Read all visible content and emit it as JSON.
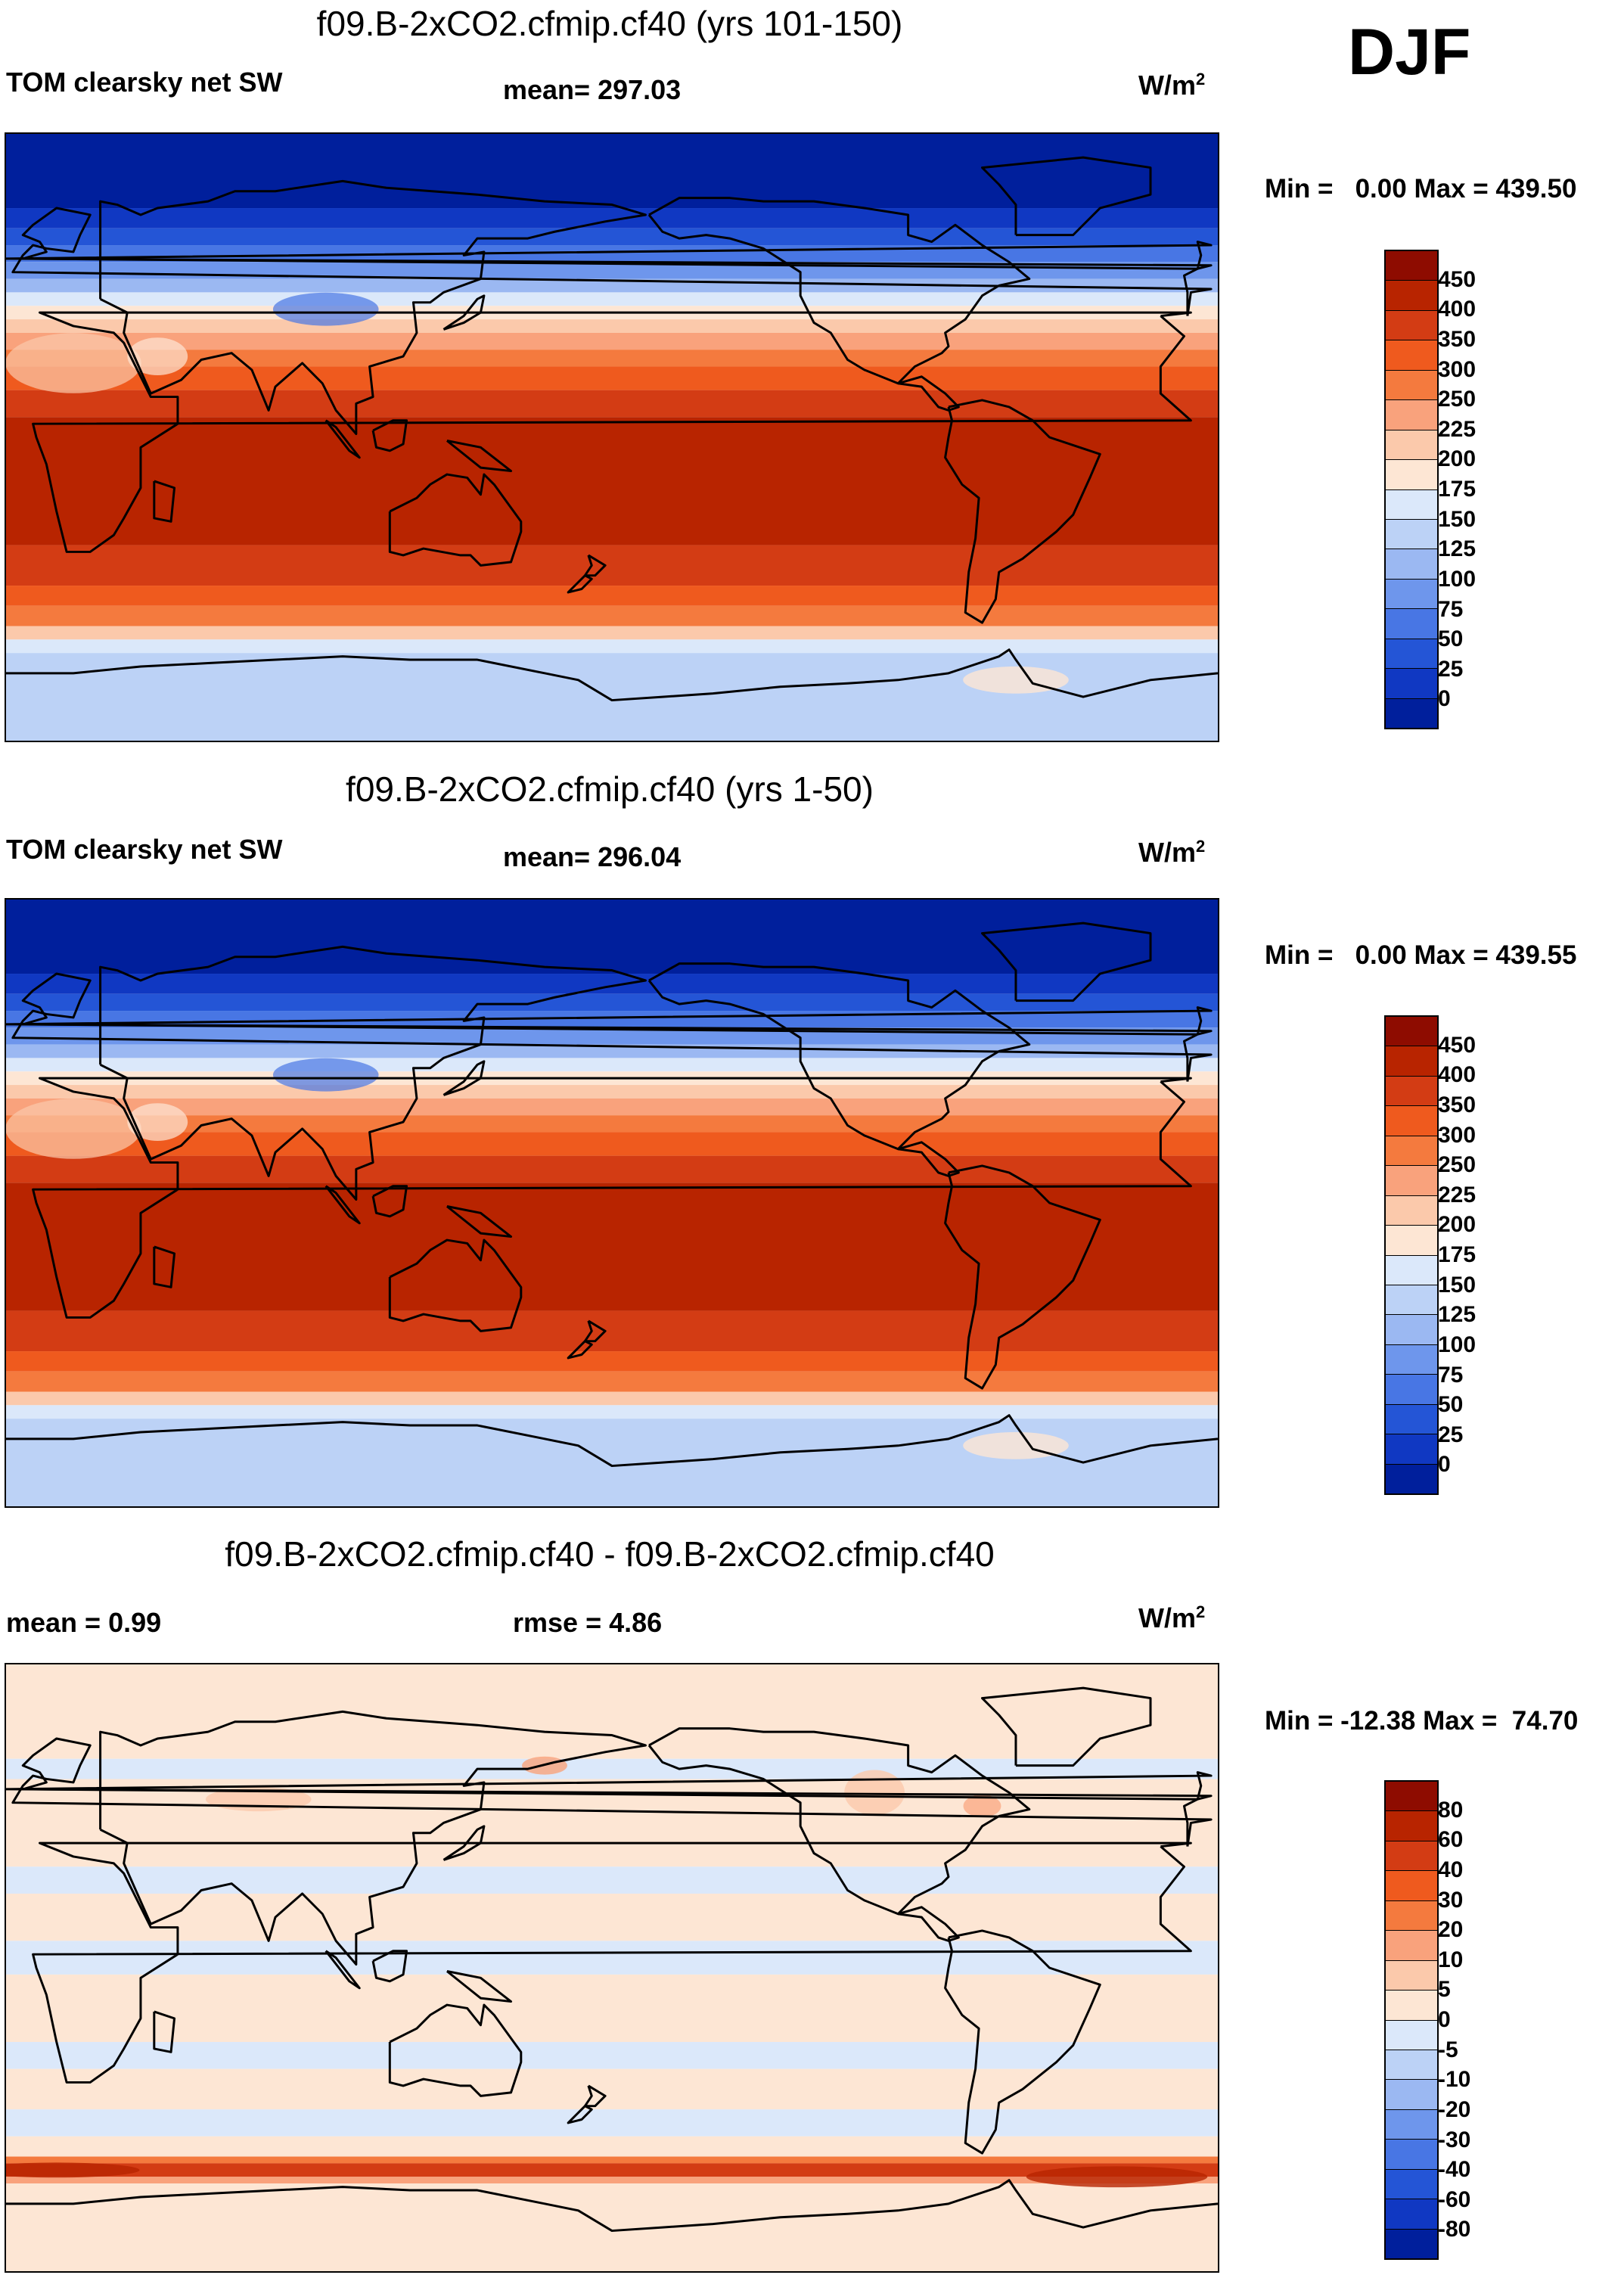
{
  "season": "DJF",
  "units_label": "W/m",
  "units_exp": "2",
  "panels": [
    {
      "title": "f09.B-2xCO2.cfmip.cf40 (yrs 101-150)",
      "variable": "TOM clearsky net SW",
      "mean_text": "mean= 297.03",
      "minmax_text": "Min =   0.00 Max = 439.50",
      "style": "absolute",
      "colorbar": {
        "colors": [
          "#8e0c00",
          "#b82400",
          "#d33c14",
          "#ef5a1e",
          "#f47a3e",
          "#f9a27c",
          "#fbc9ab",
          "#fde6d4",
          "#dbe8fa",
          "#bcd2f6",
          "#9bb8f2",
          "#6e96ec",
          "#4876e4",
          "#2455d6",
          "#1038c2",
          "#001f9c"
        ],
        "labels": [
          "450",
          "400",
          "350",
          "300",
          "250",
          "225",
          "200",
          "175",
          "150",
          "125",
          "100",
          "75",
          "50",
          "25",
          "0"
        ]
      }
    },
    {
      "title": "f09.B-2xCO2.cfmip.cf40 (yrs 1-50)",
      "variable": "TOM clearsky net SW",
      "mean_text": "mean= 296.04",
      "minmax_text": "Min =   0.00 Max = 439.55",
      "style": "absolute",
      "colorbar": {
        "colors": [
          "#8e0c00",
          "#b82400",
          "#d33c14",
          "#ef5a1e",
          "#f47a3e",
          "#f9a27c",
          "#fbc9ab",
          "#fde6d4",
          "#dbe8fa",
          "#bcd2f6",
          "#9bb8f2",
          "#6e96ec",
          "#4876e4",
          "#2455d6",
          "#1038c2",
          "#001f9c"
        ],
        "labels": [
          "450",
          "400",
          "350",
          "300",
          "250",
          "225",
          "200",
          "175",
          "150",
          "125",
          "100",
          "75",
          "50",
          "25",
          "0"
        ]
      }
    },
    {
      "title": "f09.B-2xCO2.cfmip.cf40 - f09.B-2xCO2.cfmip.cf40",
      "mean_text": "mean =   0.99",
      "rmse_text": "rmse =   4.86",
      "minmax_text": "Min = -12.38 Max =  74.70",
      "style": "difference",
      "colorbar": {
        "colors": [
          "#8e0c00",
          "#b82400",
          "#d33c14",
          "#ef5a1e",
          "#f47a3e",
          "#f9a27c",
          "#fbc9ab",
          "#fde6d4",
          "#dbe8fa",
          "#bcd2f6",
          "#9bb8f2",
          "#6e96ec",
          "#4876e4",
          "#2455d6",
          "#1038c2",
          "#001f9c"
        ],
        "labels": [
          "80",
          "60",
          "40",
          "30",
          "20",
          "10",
          "5",
          "0",
          "-5",
          "-10",
          "-20",
          "-30",
          "-40",
          "-60",
          "-80"
        ]
      }
    }
  ]
}
